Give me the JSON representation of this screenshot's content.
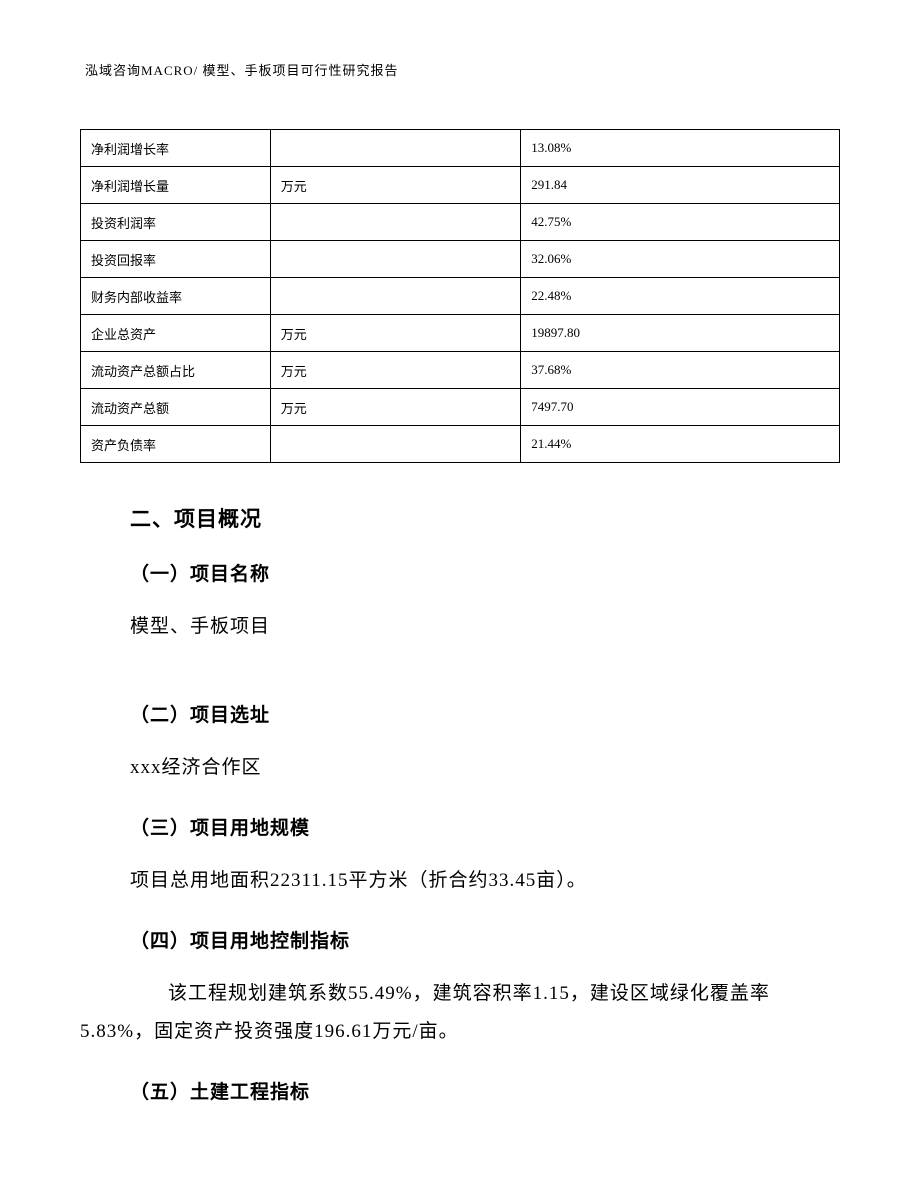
{
  "header": "泓域咨询MACRO/   模型、手板项目可行性研究报告",
  "table": {
    "rows": [
      {
        "label": "净利润增长率",
        "unit": "",
        "value": "13.08%"
      },
      {
        "label": "净利润增长量",
        "unit": "万元",
        "value": "291.84"
      },
      {
        "label": "投资利润率",
        "unit": "",
        "value": "42.75%"
      },
      {
        "label": "投资回报率",
        "unit": "",
        "value": "32.06%"
      },
      {
        "label": "财务内部收益率",
        "unit": "",
        "value": "22.48%"
      },
      {
        "label": "企业总资产",
        "unit": "万元",
        "value": "19897.80"
      },
      {
        "label": "流动资产总额占比",
        "unit": "万元",
        "value": "37.68%"
      },
      {
        "label": "流动资产总额",
        "unit": "万元",
        "value": "7497.70"
      },
      {
        "label": "资产负债率",
        "unit": "",
        "value": "21.44%"
      }
    ]
  },
  "sections": {
    "main_heading": "二、项目概况",
    "s1": {
      "heading": "（一）项目名称",
      "text": "模型、手板项目"
    },
    "s2": {
      "heading": "（二）项目选址",
      "text": "xxx经济合作区"
    },
    "s3": {
      "heading": "（三）项目用地规模",
      "text": "项目总用地面积22311.15平方米（折合约33.45亩）。"
    },
    "s4": {
      "heading": "（四）项目用地控制指标",
      "text": "该工程规划建筑系数55.49%，建筑容积率1.15，建设区域绿化覆盖率5.83%，固定资产投资强度196.61万元/亩。"
    },
    "s5": {
      "heading": "（五）土建工程指标"
    }
  }
}
